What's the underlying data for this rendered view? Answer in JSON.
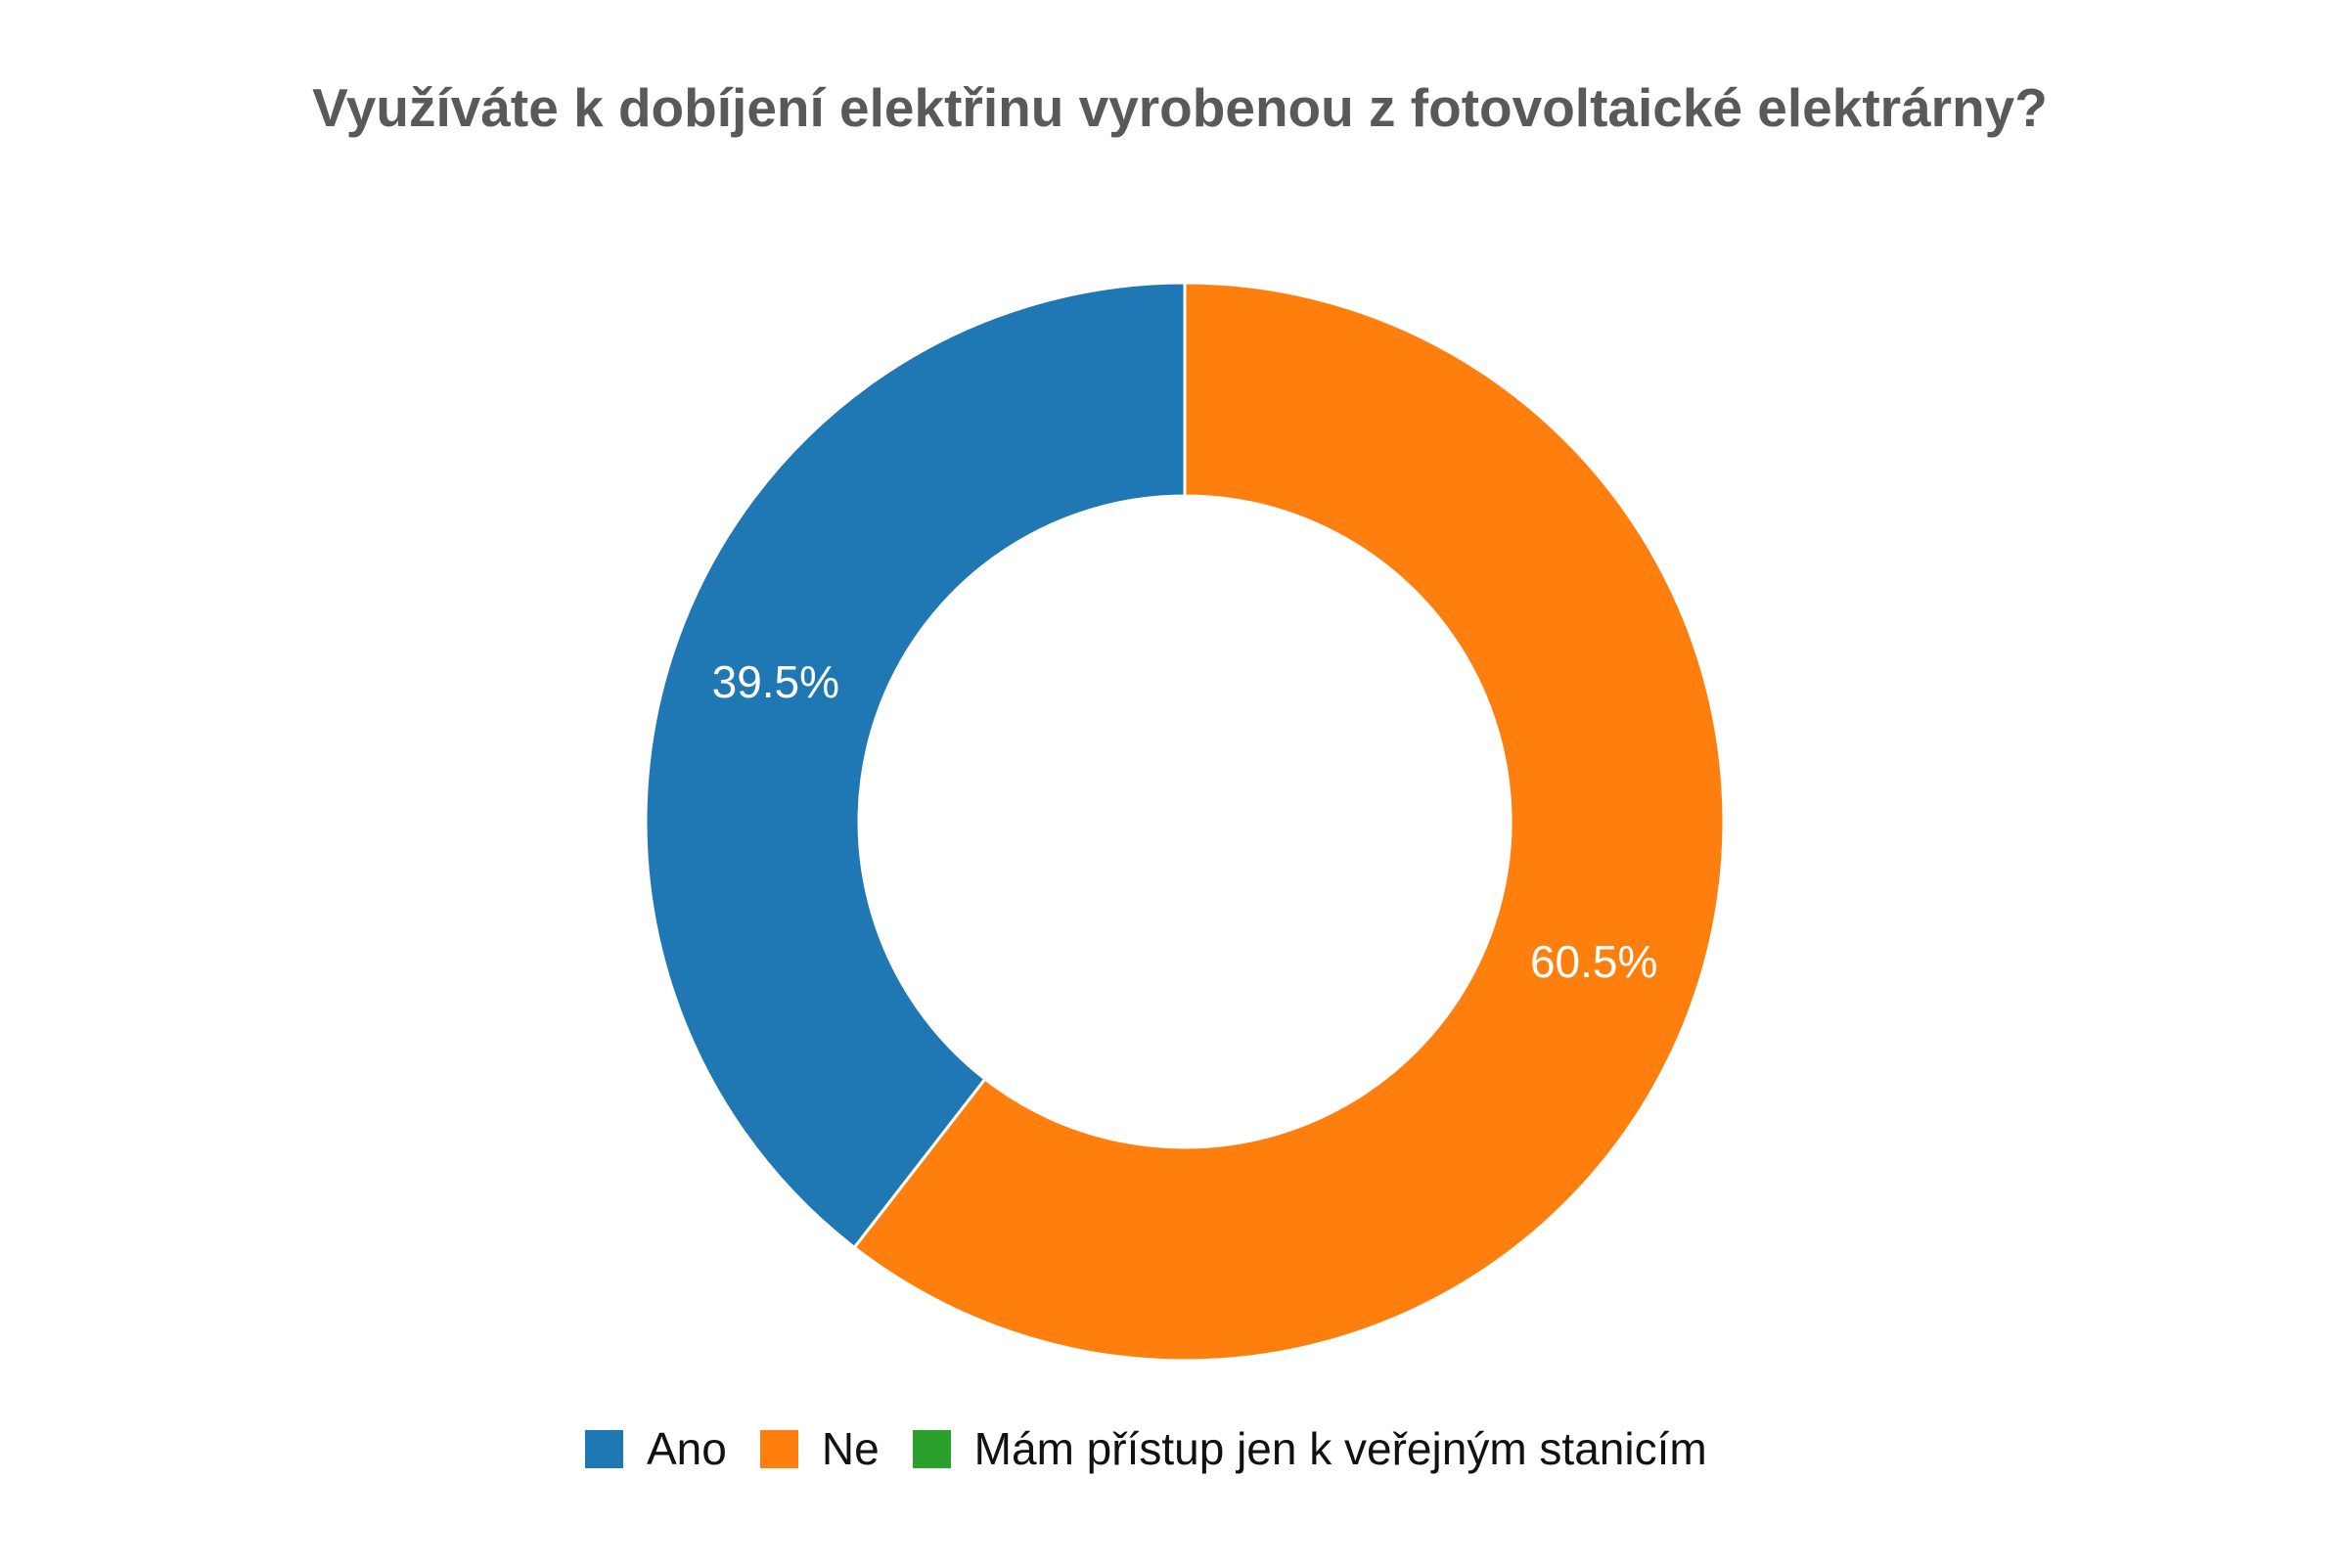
{
  "chart_data": {
    "type": "pie",
    "subtype": "donut",
    "title": "Využíváte k dobíjení elektřinu vyrobenou z fotovoltaické elektrárny?",
    "categories": [
      "Ano",
      "Ne",
      "Mám přístup jen k veřejným stanicím"
    ],
    "values": [
      39.5,
      60.5,
      0
    ],
    "labels": [
      "39.5%",
      "60.5%",
      ""
    ],
    "colors": [
      "#1f77b4",
      "#ff7f0e",
      "#2ca02c"
    ],
    "legend_position": "bottom"
  }
}
